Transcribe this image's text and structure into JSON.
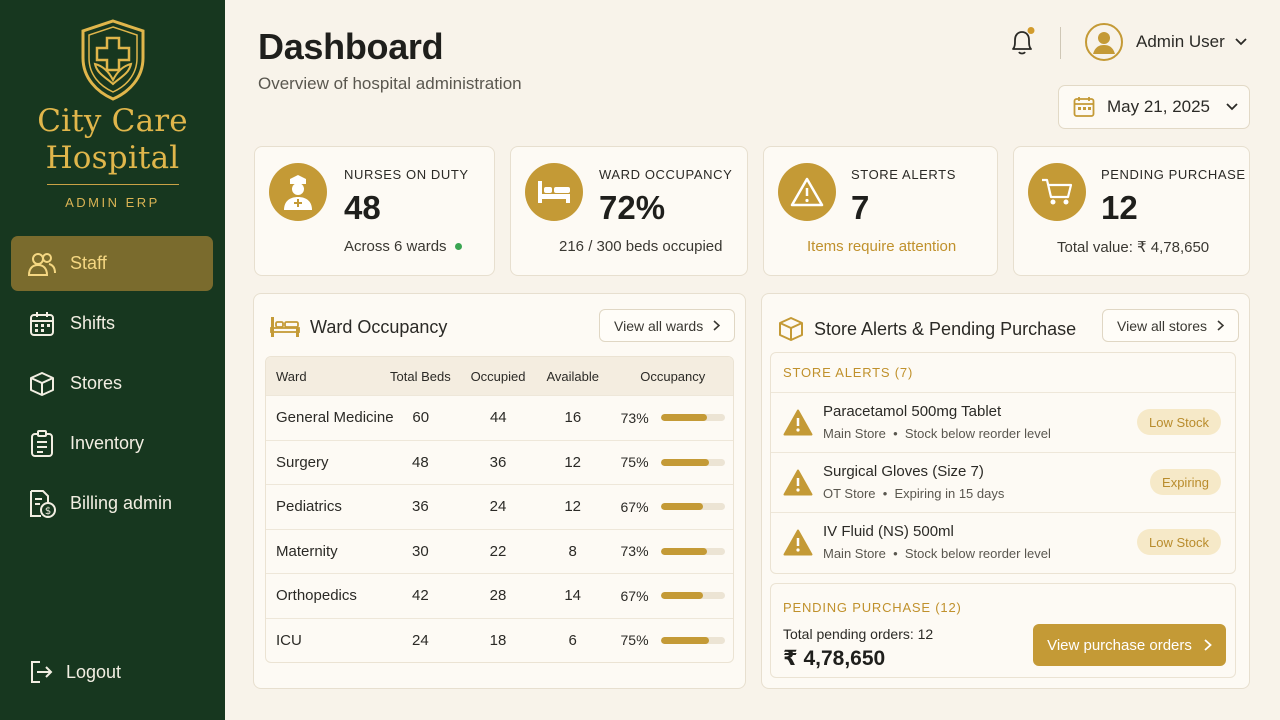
{
  "brand": {
    "name_line1": "City Care",
    "name_line2": "Hospital",
    "subtitle": "ADMIN ERP",
    "logo_icon": "shield-cross-icon",
    "accent": "#e0b64b"
  },
  "nav": {
    "items": [
      {
        "label": "Staff",
        "icon": "users-icon",
        "active": true
      },
      {
        "label": "Shifts",
        "icon": "calendar-icon",
        "active": false
      },
      {
        "label": "Stores",
        "icon": "cube-icon",
        "active": false
      },
      {
        "label": "Inventory",
        "icon": "clipboard-icon",
        "active": false
      },
      {
        "label": "Billing admin",
        "icon": "invoice-icon",
        "active": false
      }
    ],
    "logout": "Logout"
  },
  "header": {
    "title": "Dashboard",
    "subtitle": "Overview of hospital administration",
    "user_name": "Admin User",
    "date": "May 21, 2025"
  },
  "stats": [
    {
      "label": "NURSES ON DUTY",
      "value": "48",
      "note": "Across 6 wards",
      "icon": "nurse-icon"
    },
    {
      "label": "WARD OCCUPANCY",
      "value": "72%",
      "note": "216 / 300 beds occupied",
      "icon": "bed-icon"
    },
    {
      "label": "STORE ALERTS",
      "value": "7",
      "note": "Items require attention",
      "icon": "warning-icon"
    },
    {
      "label": "PENDING PURCHASE",
      "value": "12",
      "note": "Total value: ₹ 4,78,650",
      "icon": "cart-icon"
    }
  ],
  "ward": {
    "title": "Ward Occupancy",
    "view_all": "View all wards",
    "headers": [
      "Ward",
      "Total Beds",
      "Occupied",
      "Available",
      "Occupancy"
    ],
    "rows": [
      {
        "ward": "General Medicine",
        "total": "60",
        "occupied": "44",
        "available": "16",
        "pct": "73%",
        "ratio": 0.73
      },
      {
        "ward": "Surgery",
        "total": "48",
        "occupied": "36",
        "available": "12",
        "pct": "75%",
        "ratio": 0.75
      },
      {
        "ward": "Pediatrics",
        "total": "36",
        "occupied": "24",
        "available": "12",
        "pct": "67%",
        "ratio": 0.67
      },
      {
        "ward": "Maternity",
        "total": "30",
        "occupied": "22",
        "available": "8",
        "pct": "73%",
        "ratio": 0.73
      },
      {
        "ward": "Orthopedics",
        "total": "42",
        "occupied": "28",
        "available": "14",
        "pct": "67%",
        "ratio": 0.67
      },
      {
        "ward": "ICU",
        "total": "24",
        "occupied": "18",
        "available": "6",
        "pct": "75%",
        "ratio": 0.75
      }
    ]
  },
  "store": {
    "title": "Store Alerts & Pending Purchase",
    "view_all": "View all stores",
    "alerts_label": "STORE ALERTS (7)",
    "alerts": [
      {
        "name": "Paracetamol 500mg Tablet",
        "store": "Main Store",
        "detail": "Stock below reorder level",
        "badge": "Low Stock"
      },
      {
        "name": "Surgical Gloves (Size 7)",
        "store": "OT Store",
        "detail": "Expiring in 15 days",
        "badge": "Expiring"
      },
      {
        "name": "IV Fluid (NS) 500ml",
        "store": "Main Store",
        "detail": "Stock below reorder level",
        "badge": "Low Stock"
      }
    ],
    "pending_label": "PENDING PURCHASE (12)",
    "pending_total": "Total pending orders: 12",
    "pending_value": "₹ 4,78,650",
    "pending_button": "View purchase orders"
  },
  "colors": {
    "sidebar": "#17371f",
    "gold": "#c49a36",
    "background": "#f8f3ea",
    "status_green": "#3aa552"
  }
}
